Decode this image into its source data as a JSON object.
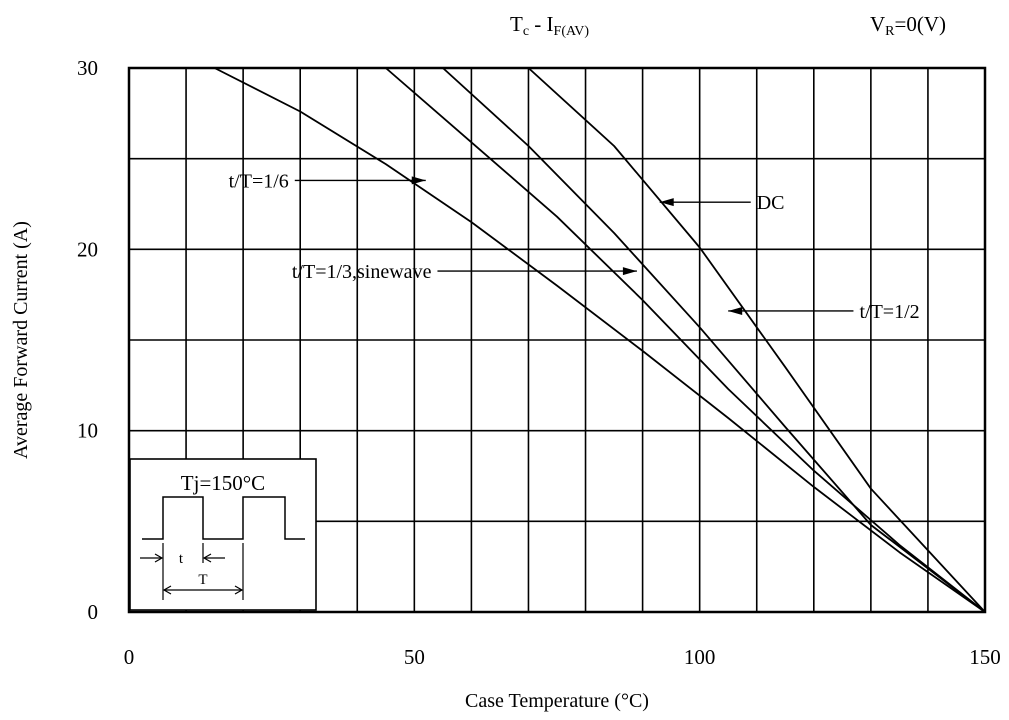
{
  "chart_data": {
    "type": "line",
    "title": "Tc - IF(AV)",
    "title_main": "T",
    "title_main_sub": "c",
    "title_sep": " - I",
    "title_sub": "F(AV)",
    "condition": "VR=0(V)",
    "condition_main": "V",
    "condition_sub": "R",
    "condition_rest": "=0(V)",
    "xlabel": "Case Temperature (°C)",
    "ylabel": "Average Forward Current (A)",
    "xlim": [
      0,
      150
    ],
    "ylim": [
      0,
      30
    ],
    "x_ticks": [
      0,
      50,
      100,
      150
    ],
    "x_tick_labels": [
      "0",
      "50",
      "100",
      "150"
    ],
    "y_ticks": [
      0,
      10,
      20,
      30
    ],
    "y_tick_labels": [
      "0",
      "10",
      "20",
      "30"
    ],
    "x_grid": [
      0,
      10,
      20,
      30,
      40,
      50,
      60,
      70,
      80,
      90,
      100,
      110,
      120,
      130,
      140,
      150
    ],
    "y_grid": [
      0,
      5,
      10,
      15,
      20,
      25,
      30
    ],
    "grid": true,
    "series": [
      {
        "name": "DC",
        "x": [
          70,
          85,
          100,
          115,
          130,
          150
        ],
        "y": [
          30,
          25.7,
          20.1,
          13.5,
          6.8,
          0
        ]
      },
      {
        "name": "t/T=1/2",
        "x": [
          55,
          70,
          85,
          100,
          115,
          130,
          150
        ],
        "y": [
          30,
          25.7,
          20.9,
          15.7,
          10.2,
          4.8,
          0
        ]
      },
      {
        "name": "t/T=1/3,sinewave",
        "x": [
          45,
          60,
          75,
          90,
          105,
          120,
          135,
          150
        ],
        "y": [
          30,
          25.9,
          21.8,
          17.2,
          12.3,
          7.8,
          3.7,
          0
        ]
      },
      {
        "name": "t/T=1/6",
        "x": [
          15,
          30,
          45,
          60,
          75,
          90,
          105,
          120,
          135,
          150
        ],
        "y": [
          30,
          27.6,
          24.7,
          21.5,
          18.0,
          14.4,
          10.7,
          6.9,
          3.3,
          0
        ]
      }
    ],
    "annotations": [
      {
        "text": "DC",
        "series": "DC",
        "arrow_to_x": 93,
        "arrow_to_y": 22.6,
        "text_x": 110,
        "text_y": 22.6,
        "align": "start"
      },
      {
        "text": "t/T=1/2",
        "series": "t/T=1/2",
        "arrow_to_x": 105,
        "arrow_to_y": 16.6,
        "text_x": 128,
        "text_y": 16.6,
        "align": "start"
      },
      {
        "text": "t/T=1/3,sinewave",
        "series": "t/T=1/3,sinewave",
        "arrow_to_x": 89,
        "arrow_to_y": 18.8,
        "text_x": 53,
        "text_y": 18.8,
        "align": "end"
      },
      {
        "text": "t/T=1/6",
        "series": "t/T=1/6",
        "arrow_to_x": 52,
        "arrow_to_y": 23.8,
        "text_x": 28,
        "text_y": 23.8,
        "align": "end"
      }
    ],
    "inset": {
      "title": "Tj=150°C",
      "label_t": "t",
      "label_T": "T"
    }
  }
}
